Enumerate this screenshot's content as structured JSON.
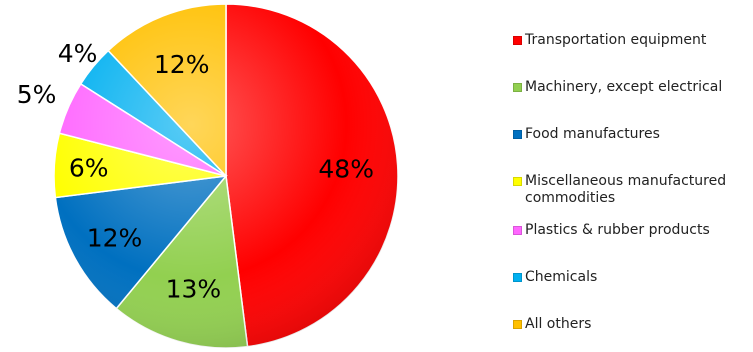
{
  "chart_data": {
    "type": "pie",
    "title": "",
    "legend_position": "right",
    "slices": [
      {
        "label": "Transportation equipment",
        "value": 48,
        "display": "48%",
        "color": "#ff0000"
      },
      {
        "label": "Machinery, except electrical",
        "value": 13,
        "display": "13%",
        "color": "#92d050"
      },
      {
        "label": "Food manufactures",
        "value": 12,
        "display": "12%",
        "color": "#0070c0"
      },
      {
        "label": "Miscellaneous manufactured commodities",
        "value": 6,
        "display": "6%",
        "color": "#ffff00"
      },
      {
        "label": "Plastics & rubber products",
        "value": 5,
        "display": "5%",
        "color": "#ff66ff"
      },
      {
        "label": "Chemicals",
        "value": 4,
        "display": "4%",
        "color": "#00b0f0"
      },
      {
        "label": "All others",
        "value": 12,
        "display": "12%",
        "color": "#ffc000"
      }
    ]
  }
}
